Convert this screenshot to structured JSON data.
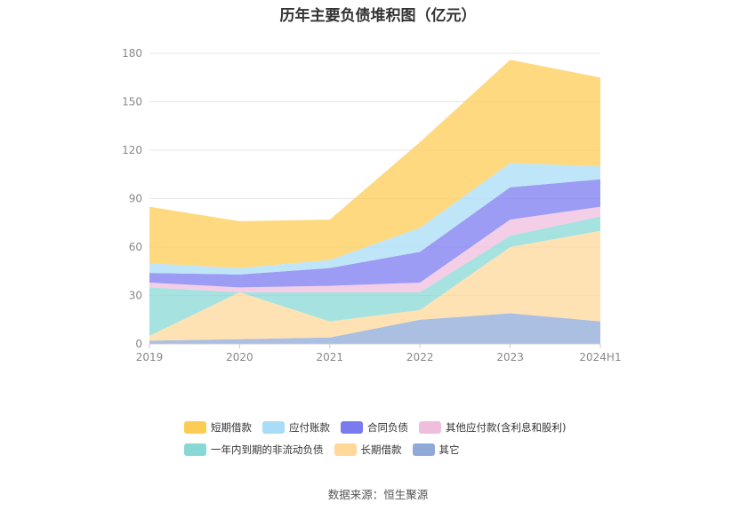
{
  "source": "数据来源：恒生聚源",
  "colors": {
    "grid": "#e6e6e6",
    "axis": "#cccccc",
    "tick_text": "#888888"
  },
  "chart_data": {
    "type": "area",
    "stacked": true,
    "title": "历年主要负债堆积图（亿元）",
    "categories": [
      "2019",
      "2020",
      "2021",
      "2022",
      "2023",
      "2024H1"
    ],
    "ylim": [
      0,
      180
    ],
    "yticks": [
      0,
      30,
      60,
      90,
      120,
      150,
      180
    ],
    "grid": true,
    "legend_position": "bottom",
    "series": [
      {
        "name": "其它",
        "color": "#8fa9d8",
        "values": [
          2,
          3,
          4,
          15,
          19,
          14
        ]
      },
      {
        "name": "长期借款",
        "color": "#ffd89a",
        "values": [
          3,
          29,
          10,
          6,
          41,
          56
        ]
      },
      {
        "name": "一年内到期的非流动负债",
        "color": "#88d8d6",
        "values": [
          30,
          0,
          18,
          11,
          7,
          9
        ]
      },
      {
        "name": "其他应付款(含利息和股利)",
        "color": "#f0bedd",
        "values": [
          3,
          3,
          4,
          6,
          10,
          6
        ]
      },
      {
        "name": "合同负债",
        "color": "#7b7bf0",
        "values": [
          6,
          8,
          11,
          19,
          20,
          17
        ]
      },
      {
        "name": "应付账款",
        "color": "#a9dcf7",
        "values": [
          6,
          4,
          5,
          15,
          15,
          8
        ]
      },
      {
        "name": "短期借款",
        "color": "#fdcc55",
        "values": [
          35,
          29,
          25,
          53,
          64,
          55
        ]
      }
    ],
    "legend_rows": [
      [
        "短期借款",
        "应付账款",
        "合同负债",
        "其他应付款(含利息和股利)"
      ],
      [
        "一年内到期的非流动负债",
        "长期借款",
        "其它"
      ]
    ]
  }
}
